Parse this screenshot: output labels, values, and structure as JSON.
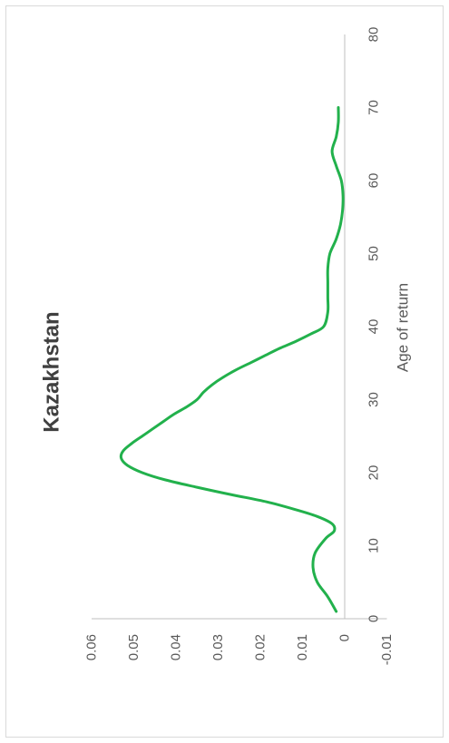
{
  "chart_data": {
    "type": "line",
    "title": "Kazakhstan",
    "xlabel": "Age of return",
    "ylabel": "",
    "xlim": [
      0,
      80
    ],
    "ylim": [
      -0.01,
      0.06
    ],
    "x_ticks": [
      "0",
      "10",
      "20",
      "30",
      "40",
      "50",
      "60",
      "70",
      "80"
    ],
    "y_ticks": [
      "-0.01",
      "0",
      "0.01",
      "0.02",
      "0.03",
      "0.04",
      "0.05",
      "0.06"
    ],
    "legend": "none",
    "grid": false,
    "orientation": "rotated 90 degrees counter-clockwise",
    "series": [
      {
        "color": "#22b14c",
        "x": [
          1,
          3,
          5,
          7,
          9,
          11,
          12,
          13,
          14,
          15,
          16,
          17,
          18,
          19,
          20,
          21,
          22,
          23,
          24,
          25,
          26,
          27,
          28,
          29,
          30,
          31,
          32,
          33,
          34,
          35,
          36,
          37,
          38,
          39,
          40,
          42,
          44,
          46,
          48,
          50,
          52,
          54,
          56,
          58,
          60,
          62,
          64,
          66,
          68,
          70
        ],
        "y": [
          0.002,
          0.004,
          0.0065,
          0.0075,
          0.007,
          0.0045,
          0.0025,
          0.003,
          0.0065,
          0.012,
          0.0185,
          0.027,
          0.035,
          0.0425,
          0.048,
          0.0515,
          0.053,
          0.0525,
          0.0505,
          0.048,
          0.0455,
          0.043,
          0.0405,
          0.0375,
          0.035,
          0.0335,
          0.0315,
          0.029,
          0.026,
          0.0225,
          0.019,
          0.0155,
          0.0115,
          0.008,
          0.005,
          0.004,
          0.004,
          0.004,
          0.004,
          0.0035,
          0.002,
          0.001,
          0.0005,
          0.0004,
          0.0008,
          0.002,
          0.003,
          0.002,
          0.0015,
          0.0015
        ]
      }
    ]
  }
}
